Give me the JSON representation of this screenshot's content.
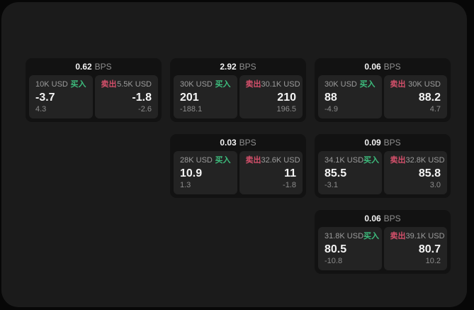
{
  "labels": {
    "bps_unit": "BPS",
    "buy": "买入",
    "sell": "卖出"
  },
  "colors": {
    "background": "#070707",
    "panel": "#1b1b1b",
    "card": "#121212",
    "subcard": "#232323",
    "buy_accent": "#3dbd7d",
    "sell_accent": "#d5506b",
    "primary_text": "#f2f2f2",
    "secondary_text": "#9c9c9c"
  },
  "cards": [
    {
      "bps": "0.62",
      "buy": {
        "amount": "10K USD",
        "price": "-3.7",
        "delta": "4.3"
      },
      "sell": {
        "amount": "5.5K USD",
        "price": "-1.8",
        "delta": "-2.6"
      }
    },
    {
      "bps": "2.92",
      "buy": {
        "amount": "30K USD",
        "price": "201",
        "delta": "-188.1"
      },
      "sell": {
        "amount": "30.1K USD",
        "price": "210",
        "delta": "196.5"
      }
    },
    {
      "bps": "0.06",
      "buy": {
        "amount": "30K USD",
        "price": "88",
        "delta": "-4.9"
      },
      "sell": {
        "amount": "30K USD",
        "price": "88.2",
        "delta": "4.7"
      }
    },
    {
      "bps": "0.03",
      "buy": {
        "amount": "28K USD",
        "price": "10.9",
        "delta": "1.3"
      },
      "sell": {
        "amount": "32.6K USD",
        "price": "11",
        "delta": "-1.8"
      }
    },
    {
      "bps": "0.09",
      "buy": {
        "amount": "34.1K USD",
        "price": "85.5",
        "delta": "-3.1"
      },
      "sell": {
        "amount": "32.8K USD",
        "price": "85.8",
        "delta": "3.0"
      }
    },
    {
      "bps": "0.06",
      "buy": {
        "amount": "31.8K USD",
        "price": "80.5",
        "delta": "-10.8"
      },
      "sell": {
        "amount": "39.1K USD",
        "price": "80.7",
        "delta": "10.2"
      }
    }
  ]
}
